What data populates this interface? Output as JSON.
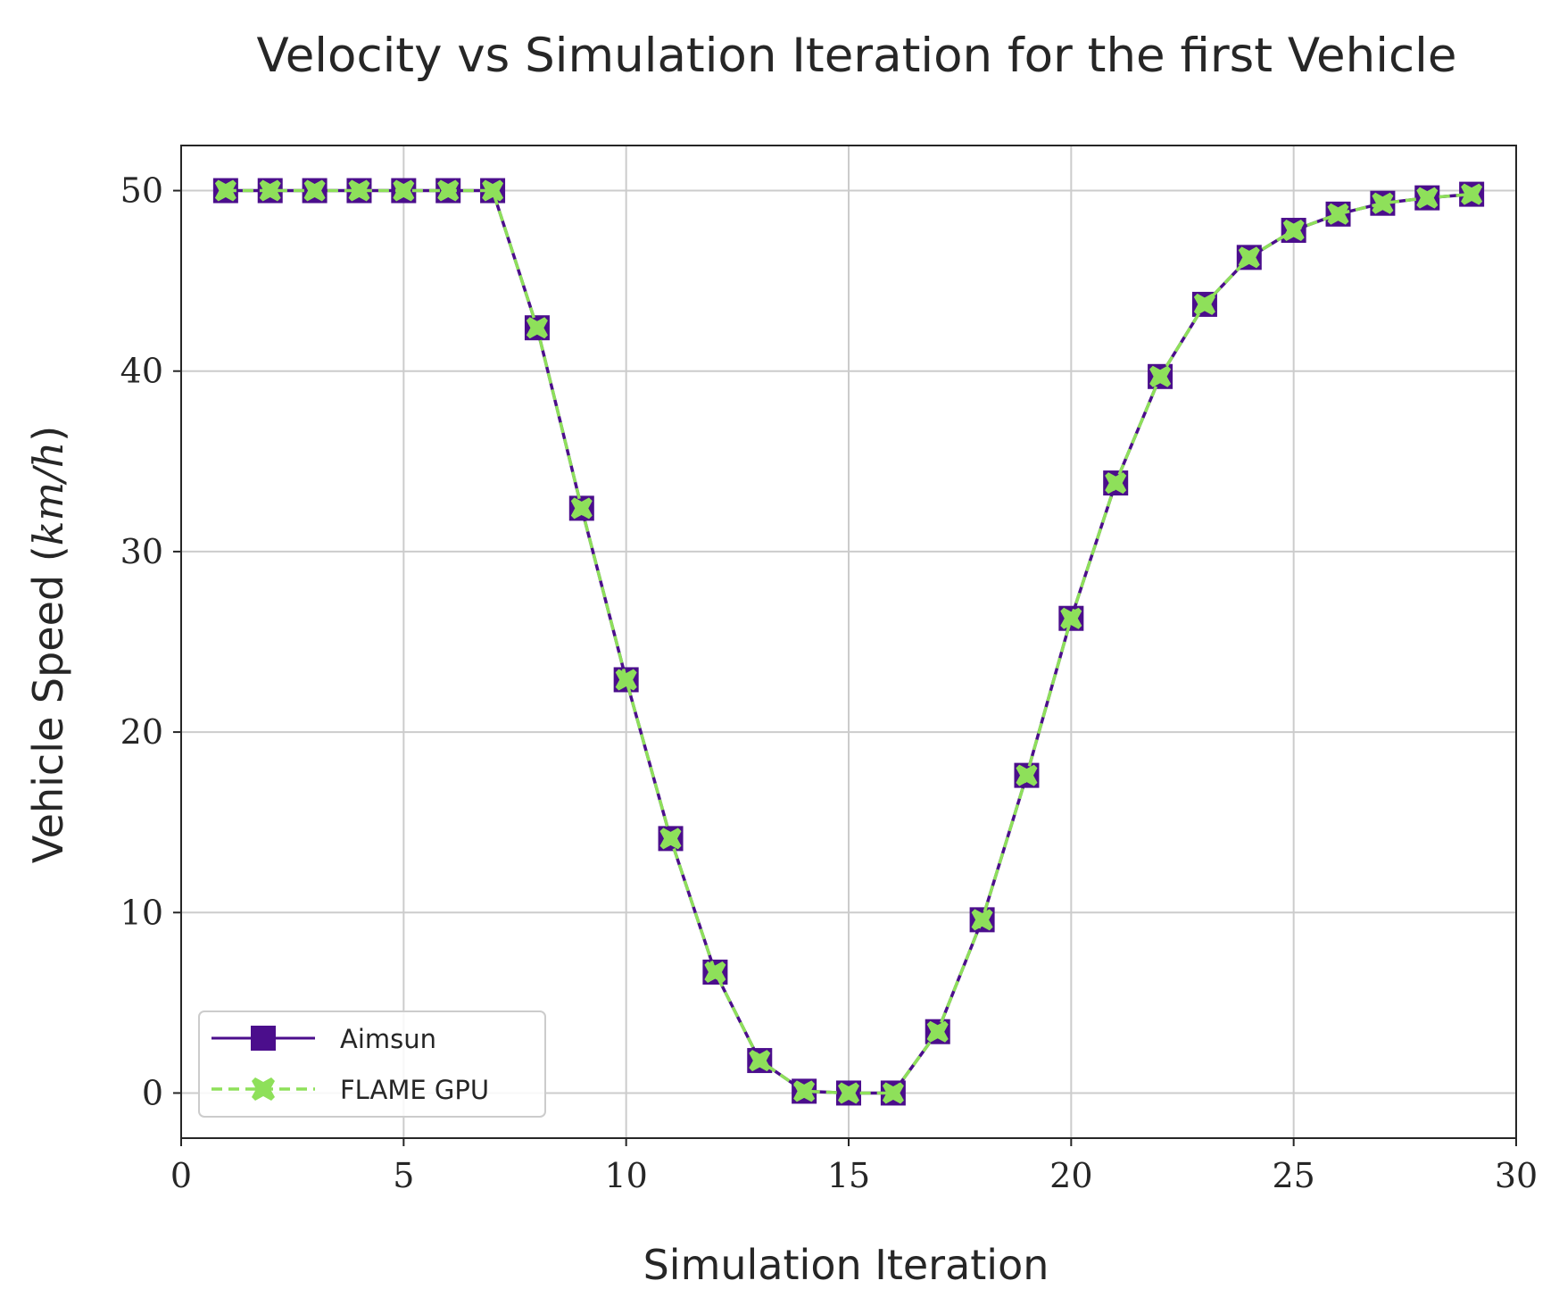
{
  "chart_data": {
    "type": "line",
    "title": "Velocity vs Simulation Iteration for the first Vehicle",
    "xlabel": "Simulation Iteration",
    "ylabel_text": "Vehicle Speed (",
    "ylabel_unit": "km/h",
    "ylabel_close": ")",
    "xlim": [
      0,
      30
    ],
    "ylim": [
      -2.5,
      52.5
    ],
    "xticks": [
      0,
      5,
      10,
      15,
      20,
      25,
      30
    ],
    "yticks": [
      0,
      10,
      20,
      30,
      40,
      50
    ],
    "grid": true,
    "legend_position": "lower-left",
    "x": [
      1,
      2,
      3,
      4,
      5,
      6,
      7,
      8,
      9,
      10,
      11,
      12,
      13,
      14,
      15,
      16,
      17,
      18,
      19,
      20,
      21,
      22,
      23,
      24,
      25,
      26,
      27,
      28,
      29
    ],
    "series": [
      {
        "name": "Aimsun",
        "color": "#4b0e8c",
        "marker": "square",
        "linestyle": "solid",
        "values": [
          50,
          50,
          50,
          50,
          50,
          50,
          50,
          42.4,
          32.4,
          22.9,
          14.1,
          6.7,
          1.8,
          0.1,
          0,
          0,
          3.4,
          9.6,
          17.6,
          26.3,
          33.8,
          39.7,
          43.7,
          46.3,
          47.8,
          48.7,
          49.3,
          49.6,
          49.8
        ]
      },
      {
        "name": "FLAME GPU",
        "color": "#8ee05a",
        "marker": "x-filled",
        "linestyle": "dashed",
        "values": [
          50,
          50,
          50,
          50,
          50,
          50,
          50,
          42.4,
          32.4,
          22.9,
          14.1,
          6.7,
          1.8,
          0.1,
          0,
          0,
          3.4,
          9.6,
          17.6,
          26.3,
          33.8,
          39.7,
          43.7,
          46.3,
          47.8,
          48.7,
          49.3,
          49.6,
          49.8
        ]
      }
    ]
  }
}
